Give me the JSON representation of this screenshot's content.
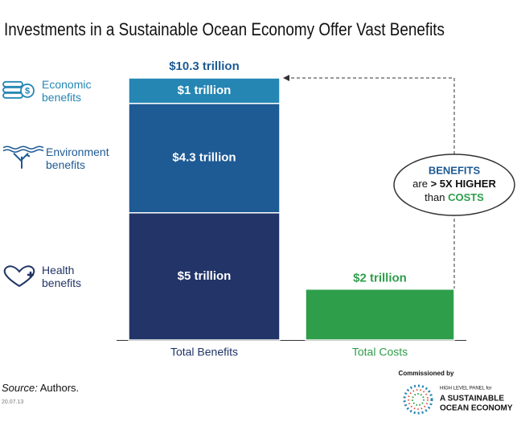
{
  "chart_data": {
    "type": "stacked_bar",
    "title": "Investments in a Sustainable Ocean Economy Offer Vast Benefits",
    "categories": [
      "Total Benefits",
      "Total Costs"
    ],
    "category_colors": [
      "#1f3466",
      "#2e9e4a"
    ],
    "series": [
      {
        "name": "Health benefits",
        "color": "#223468",
        "values": [
          5,
          null
        ],
        "value_labels": [
          "$5 trillion",
          null
        ]
      },
      {
        "name": "Environment benefits",
        "color": "#1e5a94",
        "values": [
          4.3,
          null
        ],
        "value_labels": [
          "$4.3 trillion",
          null
        ]
      },
      {
        "name": "Economic benefits",
        "color": "#2586b4",
        "values": [
          1,
          null
        ],
        "value_labels": [
          "$1 trillion",
          null
        ]
      },
      {
        "color": "#2e9e4a",
        "values": [
          null,
          2
        ],
        "value_labels": [
          null,
          "$2 trillion"
        ]
      }
    ],
    "total_label": "$10.3 trillion",
    "annotation": [
      "BENEFITS",
      "are",
      "> 5X HIGHER",
      "than",
      "COSTS"
    ],
    "source_label": "Source:",
    "source": "Authors.",
    "date": "20.07.13",
    "commissioned_by": "Commissioned by",
    "logo_lines": [
      "HIGH LEVEL PANEL for",
      "A SUSTAINABLE",
      "OCEAN ECONOMY"
    ]
  }
}
